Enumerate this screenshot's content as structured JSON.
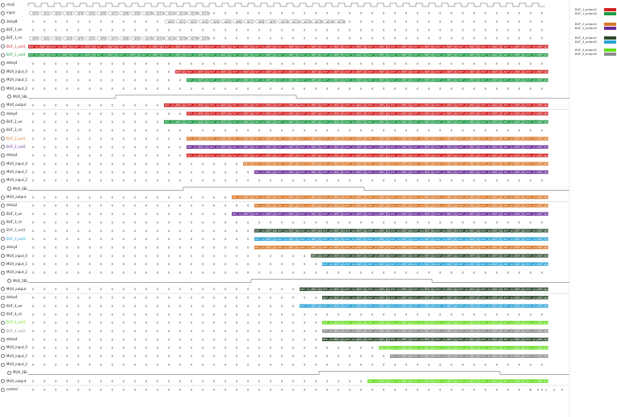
{
  "signals": [
    "clock",
    "input",
    "delay8",
    "BUF_1_wr",
    "BUF_1_rd",
    "BUF_1_out1",
    "BUF_1_out2",
    "delay4",
    "MUX_input_0",
    "MUX_input_1",
    "MUX_input_2",
    "MUX_SEL",
    "MUX_output",
    "delay4",
    "BUF_2_wr",
    "BUF_2_rd",
    "BUF_2_out1",
    "BUF_2_out2",
    "delay4",
    "MUX_input_0",
    "MUX_input_1",
    "MUX_input_2",
    "MUX_SEL",
    "MUX_output",
    "delay2",
    "BUF_3_wr",
    "BUF_3_rd",
    "BUF_3_out1",
    "BUF_3_out2",
    "delay4",
    "MUX_input_0",
    "MUX_input_1",
    "MUX_input_2",
    "MUX_SEL",
    "MUX_output",
    "delay4",
    "BUF_4_wr",
    "BUF_4_rd",
    "BUF_4_out1",
    "BUF_4_out2",
    "delay4",
    "MUX_input_0",
    "MUX_input_1",
    "MUX_input_2",
    "MUX_SEL",
    "MUX_output",
    "control"
  ],
  "signal_colors": {
    "BUF_1_out1": "#d21f1f",
    "BUF_1_out2": "#1f9a45",
    "BUF_2_out1": "#d9782a",
    "BUF_2_out2": "#6a2d99",
    "BUF_3_out1": "#2f4a2f",
    "BUF_3_out2": "#2aa3d6",
    "BUF_4_out1": "#66dd22",
    "BUF_4_out2": "#8c8c8c"
  },
  "legend": [
    {
      "label": "BUF_1_output1",
      "color": "#d21f1f"
    },
    {
      "label": "BUF_1_output2",
      "color": "#1f9a45"
    },
    {
      "label": "BUF_2_output1",
      "color": "#d9782a"
    },
    {
      "label": "BUF_2_output2",
      "color": "#6a2d99"
    },
    {
      "label": "BUF_3_output1",
      "color": "#2f4a2f"
    },
    {
      "label": "BUF_3_output2",
      "color": "#2aa3d6"
    },
    {
      "label": "BUF_4_output1",
      "color": "#66dd22"
    },
    {
      "label": "BUF_4_output2",
      "color": "#8c8c8c"
    }
  ],
  "input_values": [
    "x[0]",
    "x[1]",
    "x[2]",
    "x[3]",
    "x[4]",
    "x[5]",
    "x[6]",
    "x[7]",
    "x[8]",
    "x[9]",
    "x[10]",
    "x[11]",
    "x[12]",
    "x[13]",
    "x[14]",
    "x[15]"
  ],
  "zero": "0",
  "block_text": "BUF_x[i]/x[j]",
  "control_values": [
    "1",
    "0",
    "1",
    "3",
    "0"
  ]
}
